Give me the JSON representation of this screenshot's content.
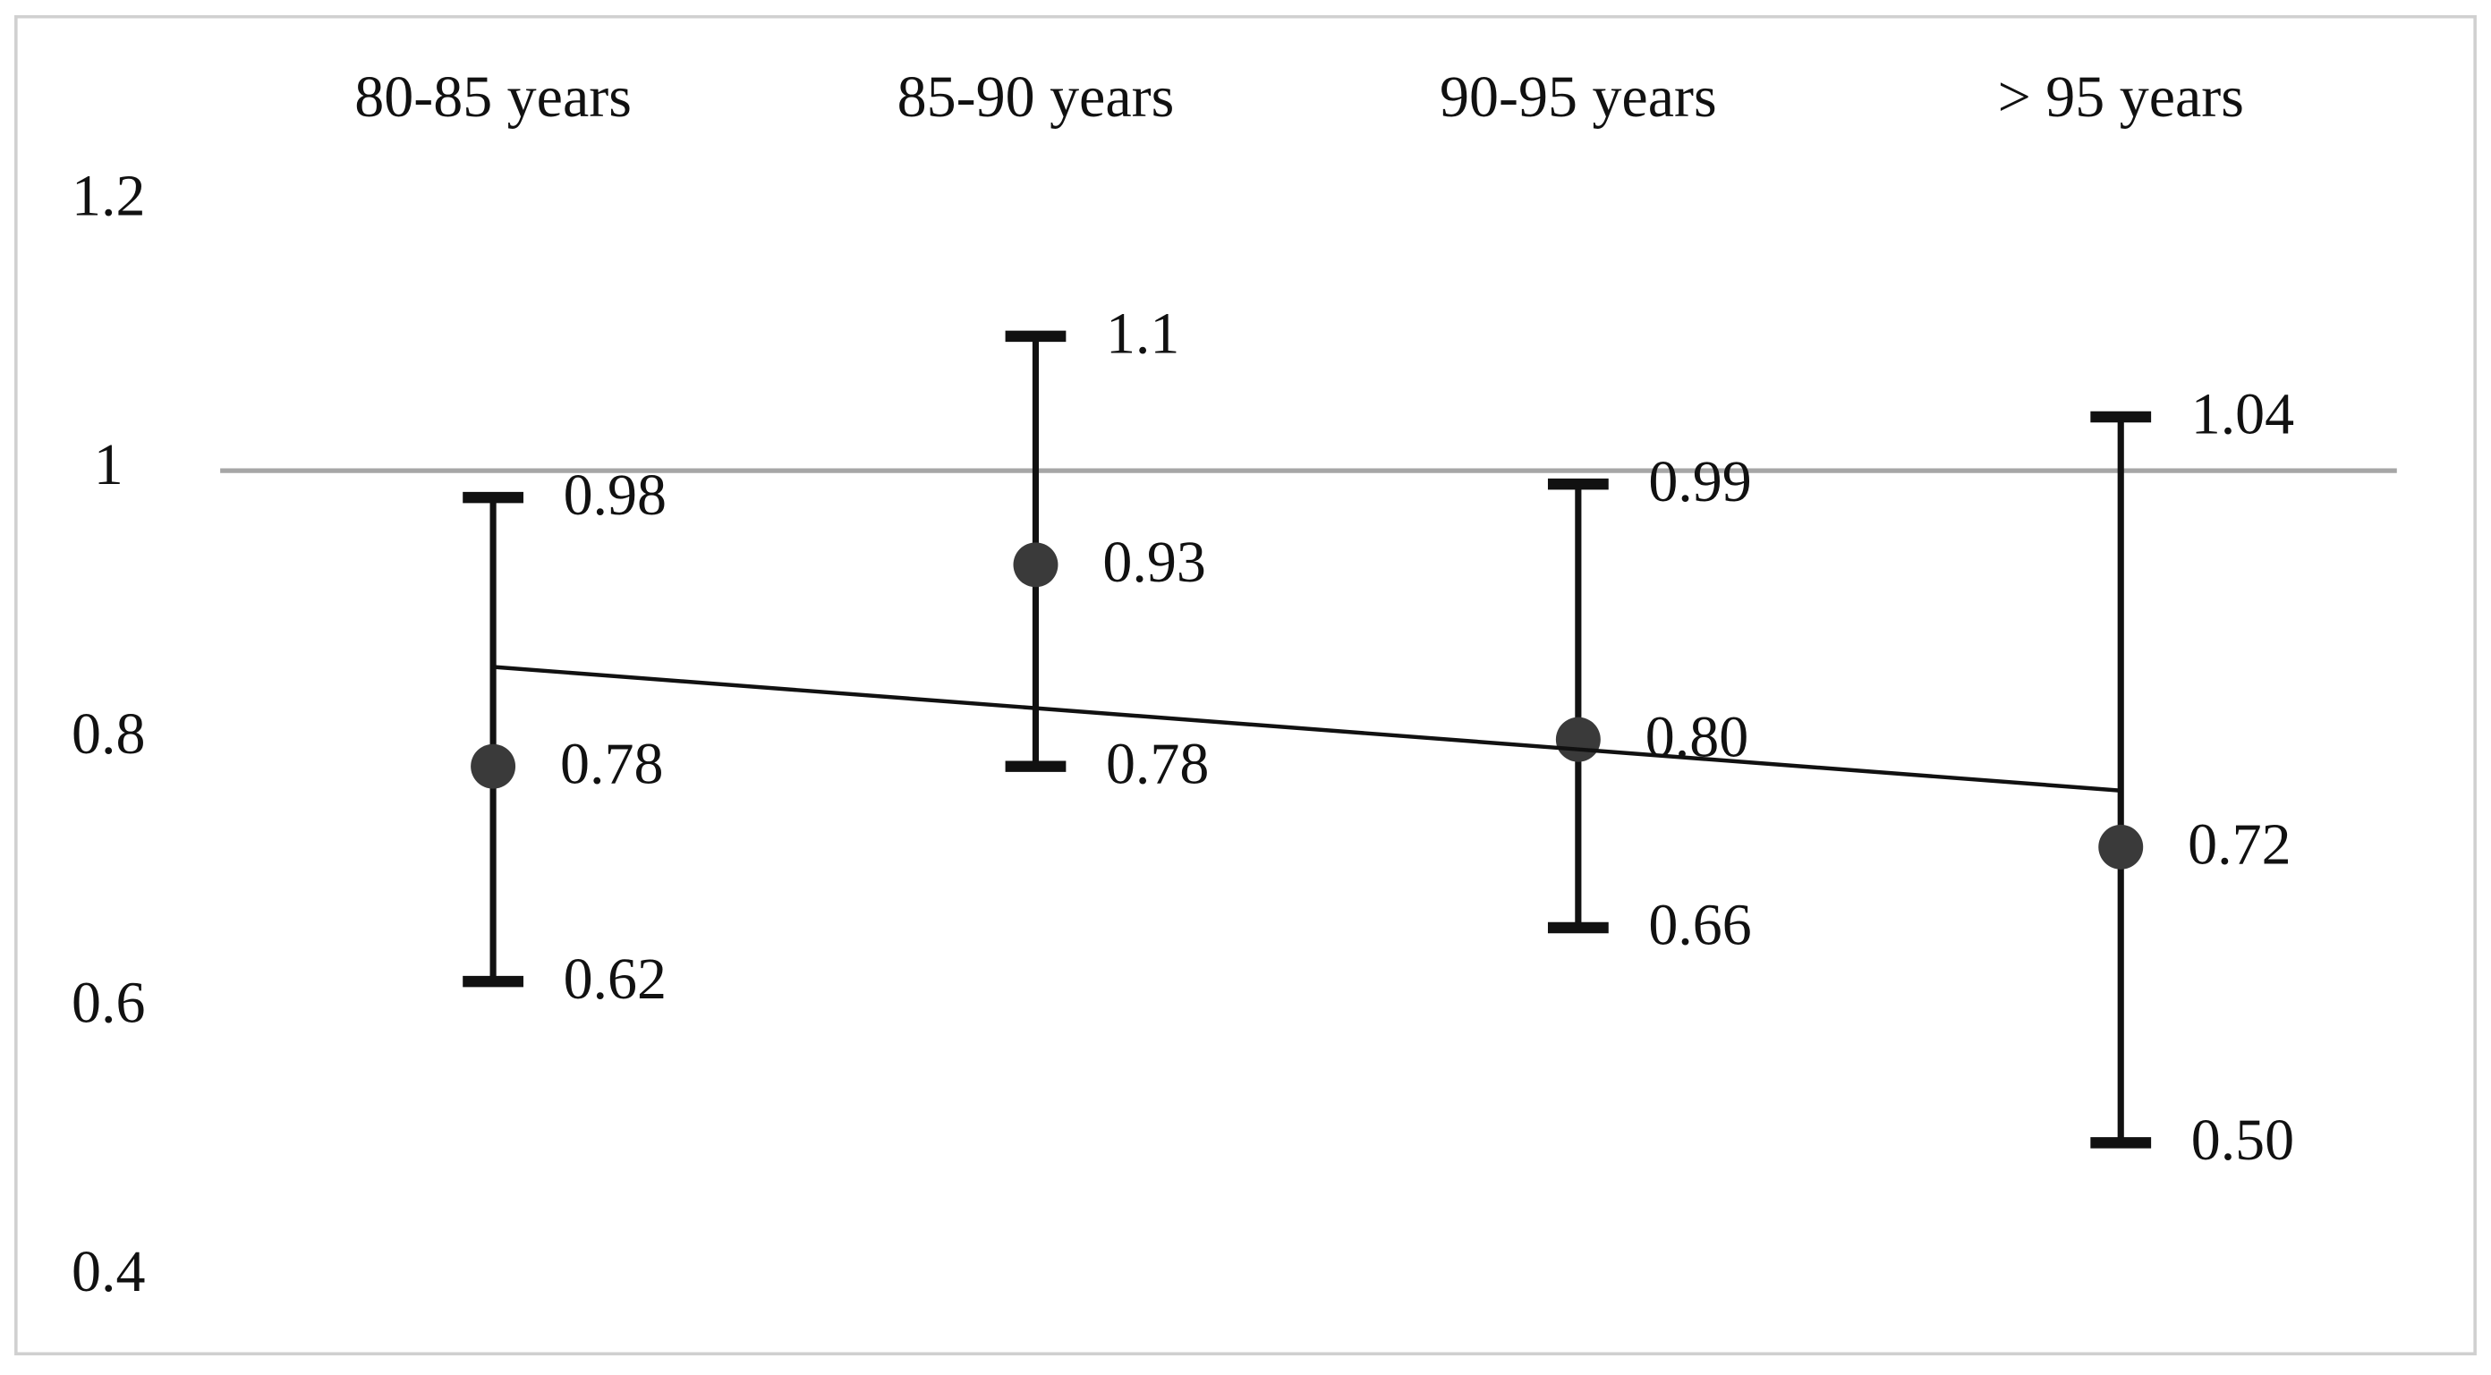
{
  "chart_data": {
    "type": "errorbar",
    "categories": [
      "80-85 years",
      "85-90 years",
      "90-95 years",
      "> 95 years"
    ],
    "values": [
      0.78,
      0.93,
      0.8,
      0.72
    ],
    "value_labels": [
      "0.78",
      "0.93",
      "0.80",
      "0.72"
    ],
    "lower": [
      0.62,
      0.78,
      0.66,
      0.5
    ],
    "lower_labels": [
      "0.62",
      "0.78",
      "0.66",
      "0.50"
    ],
    "upper": [
      0.98,
      1.1,
      0.99,
      1.04
    ],
    "upper_labels": [
      "0.98",
      "1.1",
      "0.99",
      "1.04"
    ],
    "color": "#3a3a3a",
    "ylim": [
      0.4,
      1.2
    ],
    "yticks": [
      0.4,
      0.6,
      0.8,
      1,
      1.2
    ],
    "reference_line": 1,
    "trendline": [
      0.854,
      0.762
    ]
  }
}
